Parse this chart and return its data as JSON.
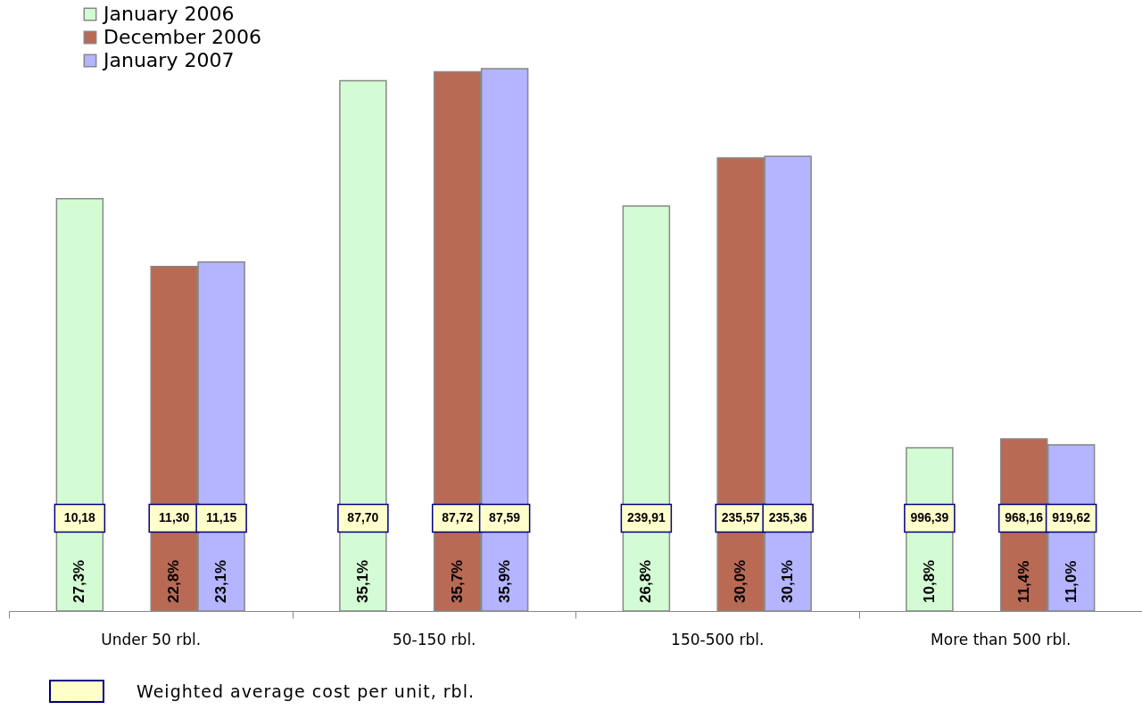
{
  "chart_data": {
    "type": "bar",
    "categories": [
      "Under 50 rbl.",
      "50-150 rbl.",
      "150-500 rbl.",
      "More than 500 rbl."
    ],
    "series": [
      {
        "name": "January 2006",
        "color": "#d4fcd4",
        "values": [
          27.3,
          35.1,
          26.8,
          10.8
        ],
        "value_labels": [
          "27,3%",
          "35,1%",
          "26,8%",
          "10,8%"
        ]
      },
      {
        "name": "December 2006",
        "color": "#b86a55",
        "values": [
          22.8,
          35.7,
          30.0,
          11.4
        ],
        "value_labels": [
          "22,8%",
          "35,7%",
          "30,0%",
          "11,4%"
        ]
      },
      {
        "name": "January 2007",
        "color": "#b4b4ff",
        "values": [
          23.1,
          35.9,
          30.1,
          11.0
        ],
        "value_labels": [
          "23,1%",
          "35,9%",
          "30,1%",
          "11,0%"
        ]
      }
    ],
    "annotations": [
      "10,18",
      "11,30",
      "11,15",
      "87,70",
      "87,72",
      "87,59",
      "239,91",
      "235,57",
      "235,36",
      "996,39",
      "968,16",
      "919,62",
      "Weighted average cost per unit, rbl."
    ],
    "legend": "top left"
  }
}
